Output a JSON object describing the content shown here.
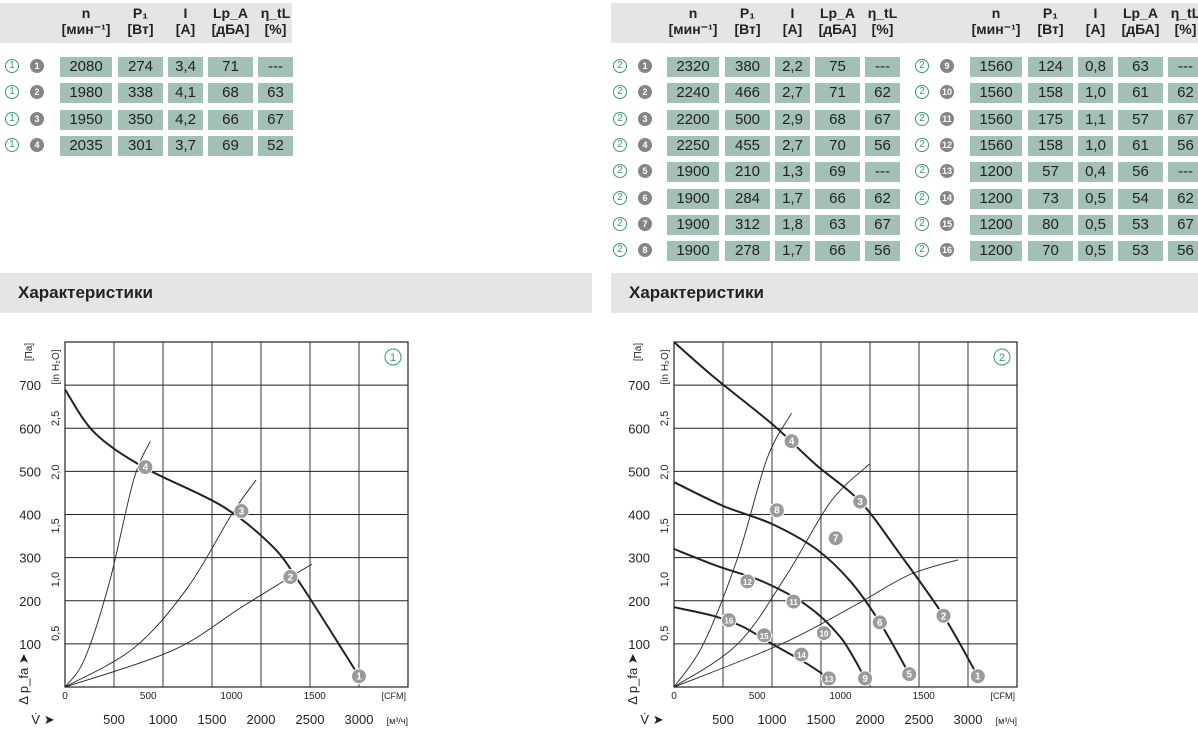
{
  "headers": [
    {
      "top": "n",
      "sub": "[мин⁻¹]"
    },
    {
      "top": "P₁",
      "sub": "[Вт]"
    },
    {
      "top": "I",
      "sub": "[A]"
    },
    {
      "top": "Lp_A",
      "sub": "[дБА]"
    },
    {
      "top": "η_tL",
      "sub": "[%]"
    }
  ],
  "tables": {
    "t1": [
      {
        "curve": "1",
        "point": "1",
        "vals": [
          "2080",
          "274",
          "3,4",
          "71",
          "---"
        ]
      },
      {
        "curve": "1",
        "point": "2",
        "vals": [
          "1980",
          "338",
          "4,1",
          "68",
          "63"
        ]
      },
      {
        "curve": "1",
        "point": "3",
        "vals": [
          "1950",
          "350",
          "4,2",
          "66",
          "67"
        ]
      },
      {
        "curve": "1",
        "point": "4",
        "vals": [
          "2035",
          "301",
          "3,7",
          "69",
          "52"
        ]
      }
    ],
    "t2": [
      {
        "curve": "2",
        "point": "1",
        "vals": [
          "2320",
          "380",
          "2,2",
          "75",
          "---"
        ]
      },
      {
        "curve": "2",
        "point": "2",
        "vals": [
          "2240",
          "466",
          "2,7",
          "71",
          "62"
        ]
      },
      {
        "curve": "2",
        "point": "3",
        "vals": [
          "2200",
          "500",
          "2,9",
          "68",
          "67"
        ]
      },
      {
        "curve": "2",
        "point": "4",
        "vals": [
          "2250",
          "455",
          "2,7",
          "70",
          "56"
        ]
      },
      {
        "curve": "2",
        "point": "5",
        "vals": [
          "1900",
          "210",
          "1,3",
          "69",
          "---"
        ]
      },
      {
        "curve": "2",
        "point": "6",
        "vals": [
          "1900",
          "284",
          "1,7",
          "66",
          "62"
        ]
      },
      {
        "curve": "2",
        "point": "7",
        "vals": [
          "1900",
          "312",
          "1,8",
          "63",
          "67"
        ]
      },
      {
        "curve": "2",
        "point": "8",
        "vals": [
          "1900",
          "278",
          "1,7",
          "66",
          "56"
        ]
      }
    ],
    "t3": [
      {
        "curve": "2",
        "point": "9",
        "vals": [
          "1560",
          "124",
          "0,8",
          "63",
          "---"
        ]
      },
      {
        "curve": "2",
        "point": "10",
        "vals": [
          "1560",
          "158",
          "1,0",
          "61",
          "62"
        ]
      },
      {
        "curve": "2",
        "point": "11",
        "vals": [
          "1560",
          "175",
          "1,1",
          "57",
          "67"
        ]
      },
      {
        "curve": "2",
        "point": "12",
        "vals": [
          "1560",
          "158",
          "1,0",
          "61",
          "56"
        ]
      },
      {
        "curve": "2",
        "point": "13",
        "vals": [
          "1200",
          "57",
          "0,4",
          "56",
          "---"
        ]
      },
      {
        "curve": "2",
        "point": "14",
        "vals": [
          "1200",
          "73",
          "0,5",
          "54",
          "62"
        ]
      },
      {
        "curve": "2",
        "point": "15",
        "vals": [
          "1200",
          "80",
          "0,5",
          "53",
          "67"
        ]
      },
      {
        "curve": "2",
        "point": "16",
        "vals": [
          "1200",
          "70",
          "0,5",
          "53",
          "56"
        ]
      }
    ]
  },
  "sections": {
    "left": "Характеристики",
    "right": "Характеристики"
  },
  "colors": {
    "cell": "#a3c0b8",
    "header_bar": "#e4e6e5",
    "circle_outline": "#3c9a6a",
    "marker": "#858585"
  },
  "chart_data": [
    {
      "type": "line",
      "badge": "1",
      "ylabel": "[Па]",
      "ylabel2": "[in H₂O]",
      "axis_label": "Δ p_fa ➤",
      "yticks": [
        "100",
        "200",
        "300",
        "400",
        "500",
        "600",
        "700"
      ],
      "yticks2": [
        "0,5",
        "1,0",
        "1,5",
        "2,0",
        "2,5"
      ],
      "xticks_cfm": [
        "0",
        "500",
        "1000",
        "1500"
      ],
      "cfm_unit": "[CFM]",
      "x_axis_label": "V̇ ➤",
      "xticks_m3h": [
        "500",
        "1000",
        "1500",
        "2000",
        "2500",
        "3000"
      ],
      "m3h_unit": "[м³/ч]",
      "xlim_m3h": [
        0,
        3500
      ],
      "ylim_pa": [
        0,
        800
      ],
      "series": [
        {
          "points": [
            [
              0,
              690
            ],
            [
              300,
              590
            ],
            [
              800,
              510
            ],
            [
              1600,
              420
            ],
            [
              2100,
              330
            ],
            [
              2400,
              240
            ],
            [
              3000,
              25
            ]
          ]
        }
      ],
      "system_lines": [
        {
          "points": [
            [
              0,
              0
            ],
            [
              200,
              65
            ],
            [
              450,
              240
            ],
            [
              700,
              480
            ],
            [
              870,
              570
            ]
          ]
        },
        {
          "points": [
            [
              0,
              0
            ],
            [
              700,
              90
            ],
            [
              1250,
              230
            ],
            [
              1700,
              400
            ],
            [
              1950,
              480
            ]
          ]
        },
        {
          "points": [
            [
              0,
              0
            ],
            [
              1100,
              85
            ],
            [
              1800,
              185
            ],
            [
              2300,
              255
            ],
            [
              2520,
              285
            ]
          ]
        }
      ],
      "markers": [
        {
          "label": "1",
          "x": 3000,
          "y": 25
        },
        {
          "label": "2",
          "x": 2300,
          "y": 255
        },
        {
          "label": "3",
          "x": 1800,
          "y": 408
        },
        {
          "label": "4",
          "x": 820,
          "y": 510
        }
      ]
    },
    {
      "type": "line",
      "badge": "2",
      "ylabel": "[Па]",
      "ylabel2": "[in H₂O]",
      "axis_label": "Δ p_fa ➤",
      "yticks": [
        "100",
        "200",
        "300",
        "400",
        "500",
        "600",
        "700"
      ],
      "yticks2": [
        "0,5",
        "1,0",
        "1,5",
        "2,0",
        "2,5"
      ],
      "xticks_cfm": [
        "0",
        "500",
        "1000",
        "1500"
      ],
      "cfm_unit": "[CFM]",
      "x_axis_label": "V̇ ➤",
      "xticks_m3h": [
        "500",
        "1000",
        "1500",
        "2000",
        "2500",
        "3000"
      ],
      "m3h_unit": "[м³/ч]",
      "xlim_m3h": [
        0,
        3500
      ],
      "ylim_pa": [
        0,
        800
      ],
      "series": [
        {
          "points": [
            [
              0,
              800
            ],
            [
              400,
              720
            ],
            [
              1000,
              610
            ],
            [
              1450,
              515
            ],
            [
              1900,
              430
            ],
            [
              2300,
              310
            ],
            [
              2750,
              165
            ],
            [
              3100,
              25
            ]
          ]
        },
        {
          "points": [
            [
              0,
              475
            ],
            [
              500,
              420
            ],
            [
              1000,
              378
            ],
            [
              1450,
              320
            ],
            [
              1800,
              245
            ],
            [
              2100,
              150
            ],
            [
              2400,
              30
            ]
          ]
        },
        {
          "points": [
            [
              0,
              320
            ],
            [
              450,
              280
            ],
            [
              900,
              245
            ],
            [
              1350,
              190
            ],
            [
              1700,
              115
            ],
            [
              1950,
              20
            ]
          ]
        },
        {
          "points": [
            [
              0,
              185
            ],
            [
              400,
              165
            ],
            [
              700,
              140
            ],
            [
              1000,
              100
            ],
            [
              1350,
              55
            ],
            [
              1580,
              20
            ]
          ]
        }
      ],
      "system_lines": [
        {
          "points": [
            [
              0,
              0
            ],
            [
              300,
              100
            ],
            [
              650,
              300
            ],
            [
              950,
              530
            ],
            [
              1200,
              635
            ]
          ]
        },
        {
          "points": [
            [
              0,
              0
            ],
            [
              650,
              100
            ],
            [
              1150,
              260
            ],
            [
              1600,
              430
            ],
            [
              2000,
              518
            ]
          ]
        },
        {
          "points": [
            [
              0,
              0
            ],
            [
              1100,
              100
            ],
            [
              1850,
              190
            ],
            [
              2400,
              260
            ],
            [
              2900,
              295
            ]
          ]
        }
      ],
      "markers": [
        {
          "label": "1",
          "x": 3100,
          "y": 25
        },
        {
          "label": "2",
          "x": 2750,
          "y": 165
        },
        {
          "label": "3",
          "x": 1900,
          "y": 430
        },
        {
          "label": "4",
          "x": 1200,
          "y": 570
        },
        {
          "label": "5",
          "x": 2400,
          "y": 30
        },
        {
          "label": "6",
          "x": 2100,
          "y": 150
        },
        {
          "label": "7",
          "x": 1650,
          "y": 345
        },
        {
          "label": "8",
          "x": 1050,
          "y": 410
        },
        {
          "label": "9",
          "x": 1950,
          "y": 20
        },
        {
          "label": "10",
          "x": 1530,
          "y": 125
        },
        {
          "label": "11",
          "x": 1220,
          "y": 198
        },
        {
          "label": "12",
          "x": 750,
          "y": 245
        },
        {
          "label": "13",
          "x": 1580,
          "y": 20
        },
        {
          "label": "14",
          "x": 1300,
          "y": 75
        },
        {
          "label": "15",
          "x": 920,
          "y": 120
        },
        {
          "label": "16",
          "x": 560,
          "y": 155
        }
      ]
    }
  ]
}
